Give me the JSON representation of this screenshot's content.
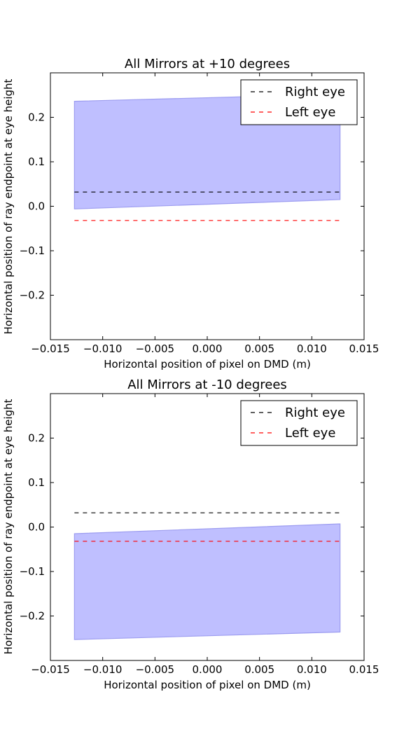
{
  "chart_data": [
    {
      "type": "area",
      "title": "All Mirrors at +10 degrees",
      "xlabel": "Horizontal position of pixel on DMD (m)",
      "ylabel": "Horizontal position of ray endpoint at eye height",
      "xlim": [
        -0.015,
        0.015
      ],
      "ylim": [
        -0.3,
        0.3
      ],
      "xticks": [
        -0.015,
        -0.01,
        -0.005,
        0.0,
        0.005,
        0.01,
        0.015
      ],
      "xtick_labels": [
        "−0.015",
        "−0.010",
        "−0.005",
        "0.000",
        "0.005",
        "0.010",
        "0.015"
      ],
      "yticks": [
        0.2,
        0.1,
        0.0,
        -0.1,
        -0.2
      ],
      "ytick_labels": [
        "0.2",
        "0.1",
        "0.0",
        "−0.1",
        "−0.2"
      ],
      "band": {
        "x": [
          -0.0127,
          0.0127
        ],
        "upper": [
          0.236,
          0.252
        ],
        "lower": [
          -0.006,
          0.015
        ],
        "color": "#bfbfff",
        "edge_color": "#9c9cf0"
      },
      "lines": [
        {
          "name": "Right eye",
          "x": [
            -0.0127,
            0.0127
          ],
          "y": [
            0.032,
            0.032
          ],
          "color": "#000000",
          "style": "dashed"
        },
        {
          "name": "Left eye",
          "x": [
            -0.0127,
            0.0127
          ],
          "y": [
            -0.032,
            -0.032
          ],
          "color": "#ff0000",
          "style": "dashed"
        }
      ],
      "legend_position": "top-right"
    },
    {
      "type": "area",
      "title": "All Mirrors at -10 degrees",
      "xlabel": "Horizontal position of pixel on DMD (m)",
      "ylabel": "Horizontal position of ray endpoint at eye height",
      "xlim": [
        -0.015,
        0.015
      ],
      "ylim": [
        -0.3,
        0.3
      ],
      "xticks": [
        -0.015,
        -0.01,
        -0.005,
        0.0,
        0.005,
        0.01,
        0.015
      ],
      "xtick_labels": [
        "−0.015",
        "−0.010",
        "−0.005",
        "0.000",
        "0.005",
        "0.010",
        "0.015"
      ],
      "yticks": [
        0.2,
        0.1,
        0.0,
        -0.1,
        -0.2
      ],
      "ytick_labels": [
        "0.2",
        "0.1",
        "0.0",
        "−0.1",
        "−0.2"
      ],
      "band": {
        "x": [
          -0.0127,
          0.0127
        ],
        "upper": [
          -0.015,
          0.007
        ],
        "lower": [
          -0.253,
          -0.236
        ],
        "color": "#bfbfff",
        "edge_color": "#9c9cf0"
      },
      "lines": [
        {
          "name": "Right eye",
          "x": [
            -0.0127,
            0.0127
          ],
          "y": [
            0.032,
            0.032
          ],
          "color": "#000000",
          "style": "dashed"
        },
        {
          "name": "Left eye",
          "x": [
            -0.0127,
            0.0127
          ],
          "y": [
            -0.032,
            -0.032
          ],
          "color": "#ff0000",
          "style": "dashed"
        }
      ],
      "legend_position": "top-right"
    }
  ]
}
